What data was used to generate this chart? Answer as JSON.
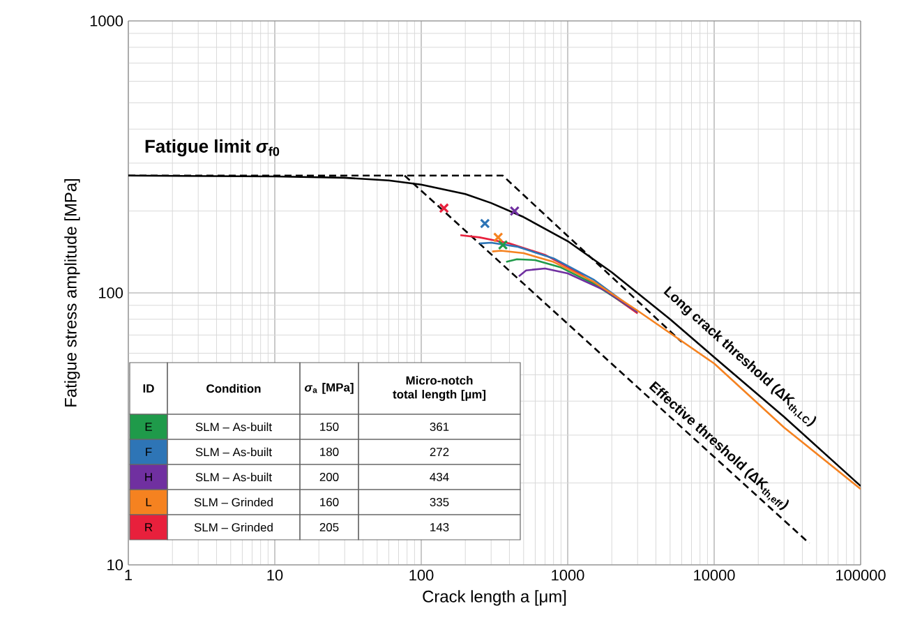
{
  "chart_data": {
    "type": "line",
    "xlabel": "Crack length a [μm]",
    "ylabel": "Fatigue stress amplitude [MPa]",
    "log": "xy",
    "grid": true,
    "xlim": [
      1,
      100000
    ],
    "ylim": [
      10,
      1000
    ],
    "xticks": [
      1,
      10,
      100,
      1000,
      10000,
      100000
    ],
    "yticks": [
      10,
      100,
      1000
    ],
    "annotations": [
      "Fatigue limit *σ*$_{f0}$",
      "Long crack threshold (ΔK$_{th,LC}$)",
      "Effective threshold (ΔK$_{th,eff}$)",
      "ID",
      "Condition",
      "*σ*$_{a}$ [MPa]",
      "Micro-notch total length [µm]",
      "SLM – As-built",
      "SLM – As-built",
      "SLM – As-built",
      "SLM – Grinded",
      "SLM – Grinded",
      "150",
      "361",
      "180",
      "272",
      "200",
      "434",
      "160",
      "335",
      "205",
      "143"
    ],
    "series": [
      {
        "color": "#000000",
        "line_style": "dashed",
        "marker": "none",
        "x": [
          1,
          360,
          6000
        ],
        "values": [
          270,
          270,
          66
        ]
      },
      {
        "color": "#000000",
        "line_style": "dashed",
        "marker": "none",
        "x": [
          77,
          44600
        ],
        "values": [
          270,
          12
        ]
      },
      {
        "color": "#000000",
        "line_style": "solid",
        "marker": "none",
        "x": [
          1,
          10,
          30,
          60,
          100,
          200,
          300,
          500,
          1000,
          2000,
          5000,
          10000,
          30000,
          100000
        ],
        "values": [
          270,
          268,
          265,
          259,
          250,
          231,
          214,
          190,
          155,
          119,
          80,
          58,
          35,
          19.5
        ]
      },
      {
        "color": "#e8203c",
        "line_style": "solid",
        "marker": "none",
        "x": [
          185,
          250,
          400,
          700,
          1200,
          2000,
          3000
        ],
        "values": [
          163,
          160,
          152,
          138,
          118,
          98,
          84
        ]
      },
      {
        "color": "#2e75b6",
        "line_style": "solid",
        "marker": "none",
        "x": [
          250,
          300,
          450,
          800,
          1500,
          3000
        ],
        "values": [
          152,
          153,
          148,
          134,
          112,
          85
        ]
      },
      {
        "color": "#1f9a4a",
        "line_style": "solid",
        "marker": "none",
        "x": [
          380,
          450,
          600,
          900,
          1500,
          3000
        ],
        "values": [
          130,
          133,
          132,
          124,
          108,
          85
        ]
      },
      {
        "color": "#7030a0",
        "line_style": "solid",
        "marker": "none",
        "x": [
          464,
          520,
          700,
          1000,
          1800,
          3000
        ],
        "values": [
          115,
          121,
          123,
          118,
          102,
          85
        ]
      },
      {
        "color": "#f58220",
        "line_style": "solid",
        "marker": "none",
        "x": [
          305,
          350,
          500,
          800,
          1500,
          3000,
          10000,
          30000,
          100000
        ],
        "values": [
          142,
          143,
          140,
          130,
          110,
          86,
          55,
          32,
          19
        ]
      },
      {
        "type": "scatter",
        "name": "E",
        "color": "#1f9a4a",
        "marker": "cross",
        "x": [
          361
        ],
        "values": [
          150
        ]
      },
      {
        "type": "scatter",
        "name": "F",
        "color": "#2e75b6",
        "marker": "cross",
        "x": [
          272
        ],
        "values": [
          180
        ]
      },
      {
        "type": "scatter",
        "name": "H",
        "color": "#7030a0",
        "marker": "cross",
        "x": [
          434
        ],
        "values": [
          200
        ]
      },
      {
        "type": "scatter",
        "name": "L",
        "color": "#f58220",
        "marker": "cross",
        "x": [
          335
        ],
        "values": [
          160
        ]
      },
      {
        "type": "scatter",
        "name": "R",
        "color": "#e8203c",
        "marker": "cross",
        "x": [
          143
        ],
        "values": [
          205
        ]
      }
    ]
  }
}
